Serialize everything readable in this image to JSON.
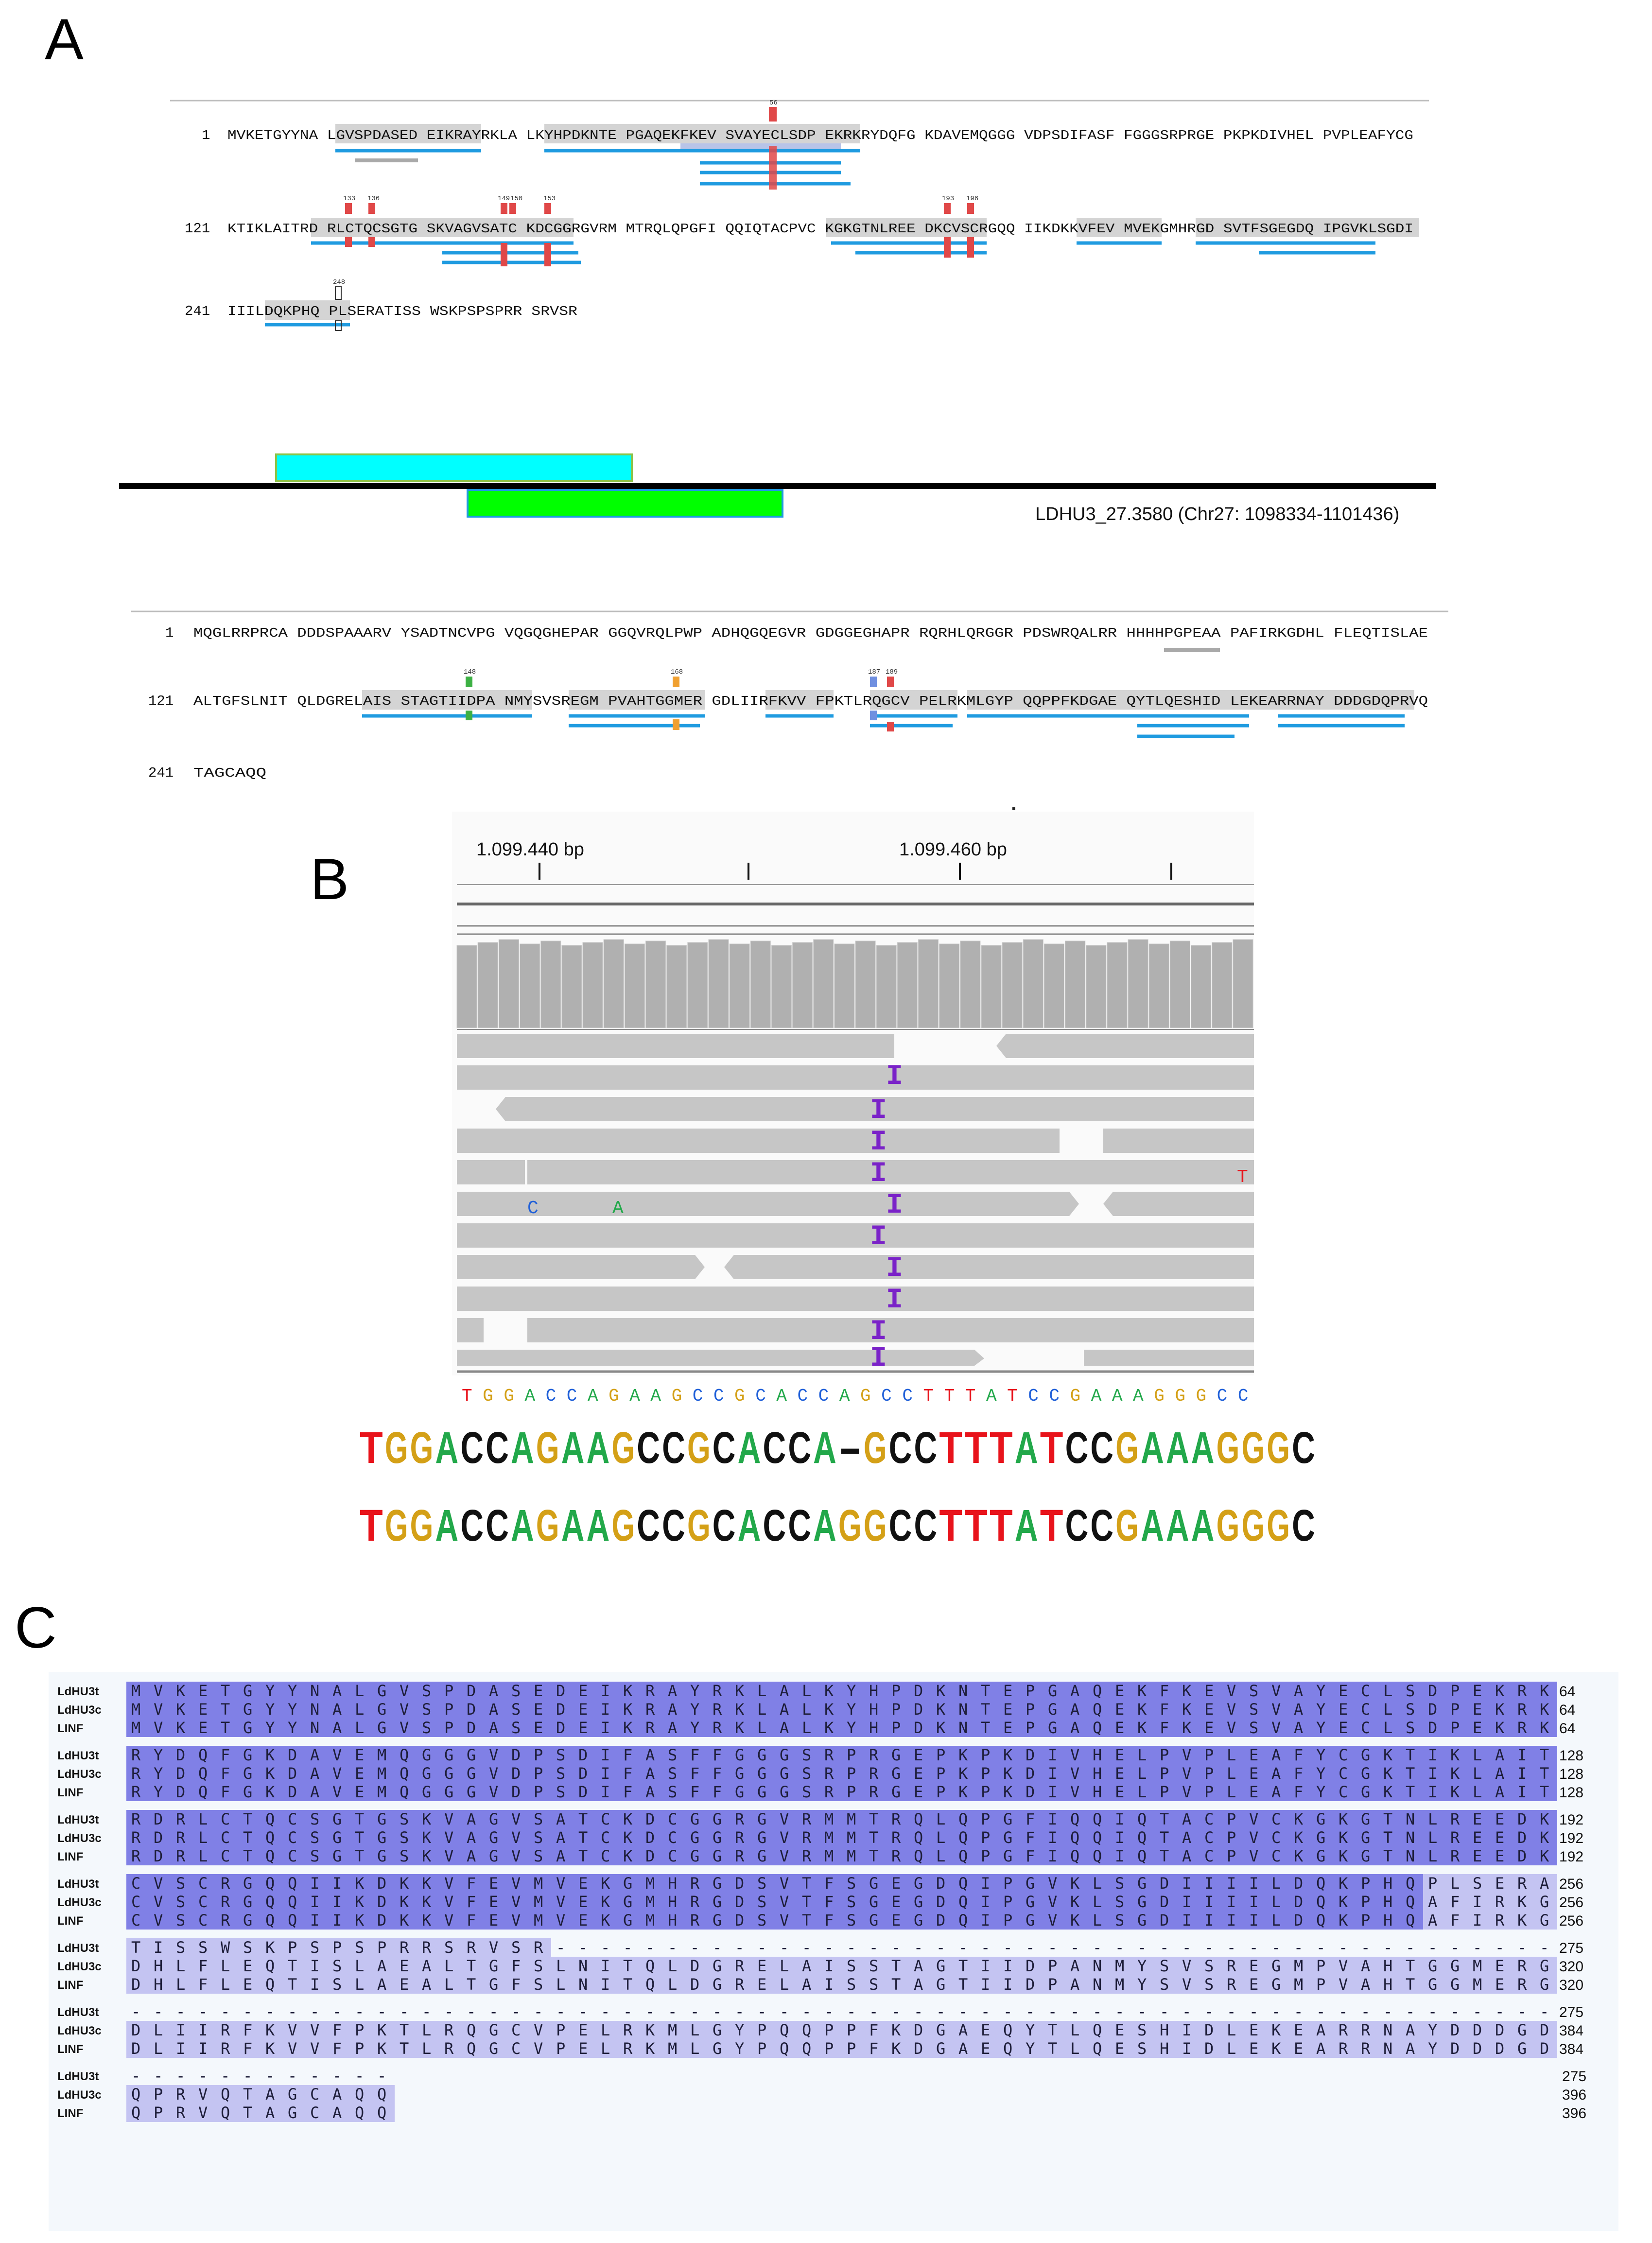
{
  "panels": {
    "a": "A",
    "b": "B",
    "c": "C"
  },
  "panelA": {
    "seq1": {
      "lines": [
        {
          "num": "1",
          "text": "MVKETGYYNA LGVSPDASED EIKRAYRKLA LKYHPDKNTE PGAQEKFKEV SVAYECLSDP EKRKRYDQFG KDAVEMQGGG VDPSDIFASF FGGGSRPRGE PKPKDIVHEL PVPLEAFYCG"
        },
        {
          "num": "121",
          "text": "KTIKLAITRD RLCTQCSGTG SKVAGVSATC KDCGGRGVRM MTRQLQPGFI QQIQTACPVC KGKGTNLREE DKCVSCRGQQ IIKDKKVFEV MVEKGMHRGD SVTFSGEGDQ IPGVKLSGDI"
        },
        {
          "num": "241",
          "text": "IIILDQKPHQ PLSERATISS WSKPSPSPRR SRVSR"
        }
      ],
      "markers": [
        "56",
        "133",
        "136",
        "149",
        "150",
        "153",
        "193",
        "196",
        "248"
      ]
    },
    "gene_label": "LDHU3_27.3580 (Chr27: 1098334-1101436)",
    "seq2": {
      "lines": [
        {
          "num": "1",
          "text": "MQGLRRPRCA DDDSPAAARV YSADTNCVPG VQGQGHEPAR GGQVRQLPWP ADHQGQEGVR GDGGEGHAPR RQRHLQRGGR PDSWRQALRR HHHHPGPEAA PAFIRKGDHL FLEQTISLAE"
        },
        {
          "num": "121",
          "text": "ALTGFSLNIT QLDGRELAIS STAGTIIDPA NMYSVSREGM PVAHTGGMER GDLIIRFKVV FPKTLRQGCV PELRKMLGYP QQPPFKDGAE QYTLQESHID LEKEARRNAY DDDGDQPRVQ"
        },
        {
          "num": "241",
          "text": "TAGCAQQ"
        }
      ],
      "markers": [
        "148",
        "168",
        "187",
        "189"
      ]
    }
  },
  "panelB": {
    "ruler_labels": [
      "1.099.440 bp",
      "1.099.460 bp"
    ],
    "ref_seq": "TGGACCAGAAGCCGCACCAGCCTTTATCCGAAAGGGCC",
    "mismatch_labels": [
      "C",
      "A",
      "T"
    ],
    "insertion_mark": "I",
    "insertion_bottom_mark": "I",
    "align_top": "TGGACCAGAAGCCGCACCA-GCCTTTATCCGAAAGGGC",
    "align_bottom": "TGGACCAGAAGCCGCACCAGGCCTTTATCCGAAAGGGC"
  },
  "panelC": {
    "names": [
      "LdHU3t",
      "LdHU3c",
      "LINF"
    ],
    "blocks": [
      {
        "rows": [
          "MVKETGYYNALGVSPDASEDEIKRAYRKLALKYHPDKNTEPGAQEKFKEVSVAYECLSDPEKRK",
          "MVKETGYYNALGVSPDASEDEIKRAYRKLALKYHPDKNTEPGAQEKFKEVSVAYECLSDPEKRK",
          "MVKETGYYNALGVSPDASEDEIKRAYRKLALKYHPDKNTEPGAQEKFKEVSVAYECLSDPEKRK"
        ],
        "ends": [
          "64",
          "64",
          "64"
        ]
      },
      {
        "rows": [
          "RYDQFGKDAVEMQGGGVDPSDIFASFFGGGSRPRGEPKPKDIVHELPVPLEAFYCGKTIKLAIT",
          "RYDQFGKDAVEMQGGGVDPSDIFASFFGGGSRPRGEPKPKDIVHELPVPLEAFYCGKTIKLAIT",
          "RYDQFGKDAVEMQGGGVDPSDIFASFFGGGSRPRGEPKPKDIVHELPVPLEAFYCGKTIKLAIT"
        ],
        "ends": [
          "128",
          "128",
          "128"
        ]
      },
      {
        "rows": [
          "RDRLCTQCSGTGSKVAGVSATCKDCGGRGVRMMTRQLQPGFIQQIQTACPVCKGKGTNLREEDK",
          "RDRLCTQCSGTGSKVAGVSATCKDCGGRGVRMMTRQLQPGFIQQIQTACPVCKGKGTNLREEDK",
          "RDRLCTQCSGTGSKVAGVSATCKDCGGRGVRMMTRQLQPGFIQQIQTACPVCKGKGTNLREEDK"
        ],
        "ends": [
          "192",
          "192",
          "192"
        ]
      },
      {
        "rows": [
          "CVSCRGQQIIKDKKVFEVMVEKGMHRGDSVTFSGEGDQIPGVKLSGDIIIILDQKPHQPLSERA",
          "CVSCRGQQIIKDKKVFEVMVEKGMHRGDSVTFSGEGDQIPGVKLSGDIIIILDQKPHQAFIRKG",
          "CVSCRGQQIIKDKKVFEVMVEKGMHRGDSVTFSGEGDQIPGVKLSGDIIIILDQKPHQAFIRKG"
        ],
        "ends": [
          "256",
          "256",
          "256"
        ]
      },
      {
        "rows": [
          "TISSWSKPSPSPRRSRVSR---------------------------------------------",
          "DHLFLEQTISLAEALTGFSLNITQLDGRELAISSTAGTIIDPANMYSVSREGMPVAHTGGMERG",
          "DHLFLEQTISLAEALTGFSLNITQLDGRELAISSTAGTIIDPANMYSVSREGMPVAHTGGMERG"
        ],
        "ends": [
          "275",
          "320",
          "320"
        ]
      },
      {
        "rows": [
          "----------------------------------------------------------------",
          "DLIIRFKVVFPKTLRQGCVPELRKMLGYPQQPPFKDGAEQYTLQESHIDLEKEARRNAYDDDGD",
          "DLIIRFKVVFPKTLRQGCVPELRKMLGYPQQPPFKDGAEQYTLQESHIDLEKEARRNAYDDDGD"
        ],
        "ends": [
          "275",
          "384",
          "384"
        ]
      },
      {
        "rows": [
          "------------",
          "QPRVQTAGCAQQ",
          "QPRVQTAGCAQQ"
        ],
        "ends": [
          "275",
          "396",
          "396"
        ]
      }
    ]
  },
  "colors": {
    "cyan_box": "#00ffff",
    "green_box": "#00ff00",
    "blue_line": "#1f9be0",
    "msa_dark": "#8080e6",
    "msa_light": "#c4c4f2",
    "insert_purple": "#7a22c8",
    "nt_T": "#e8131b",
    "nt_G": "#d4a017",
    "nt_A": "#22a84a",
    "nt_C": "#111111",
    "ref_C": "#1f5fd8"
  }
}
